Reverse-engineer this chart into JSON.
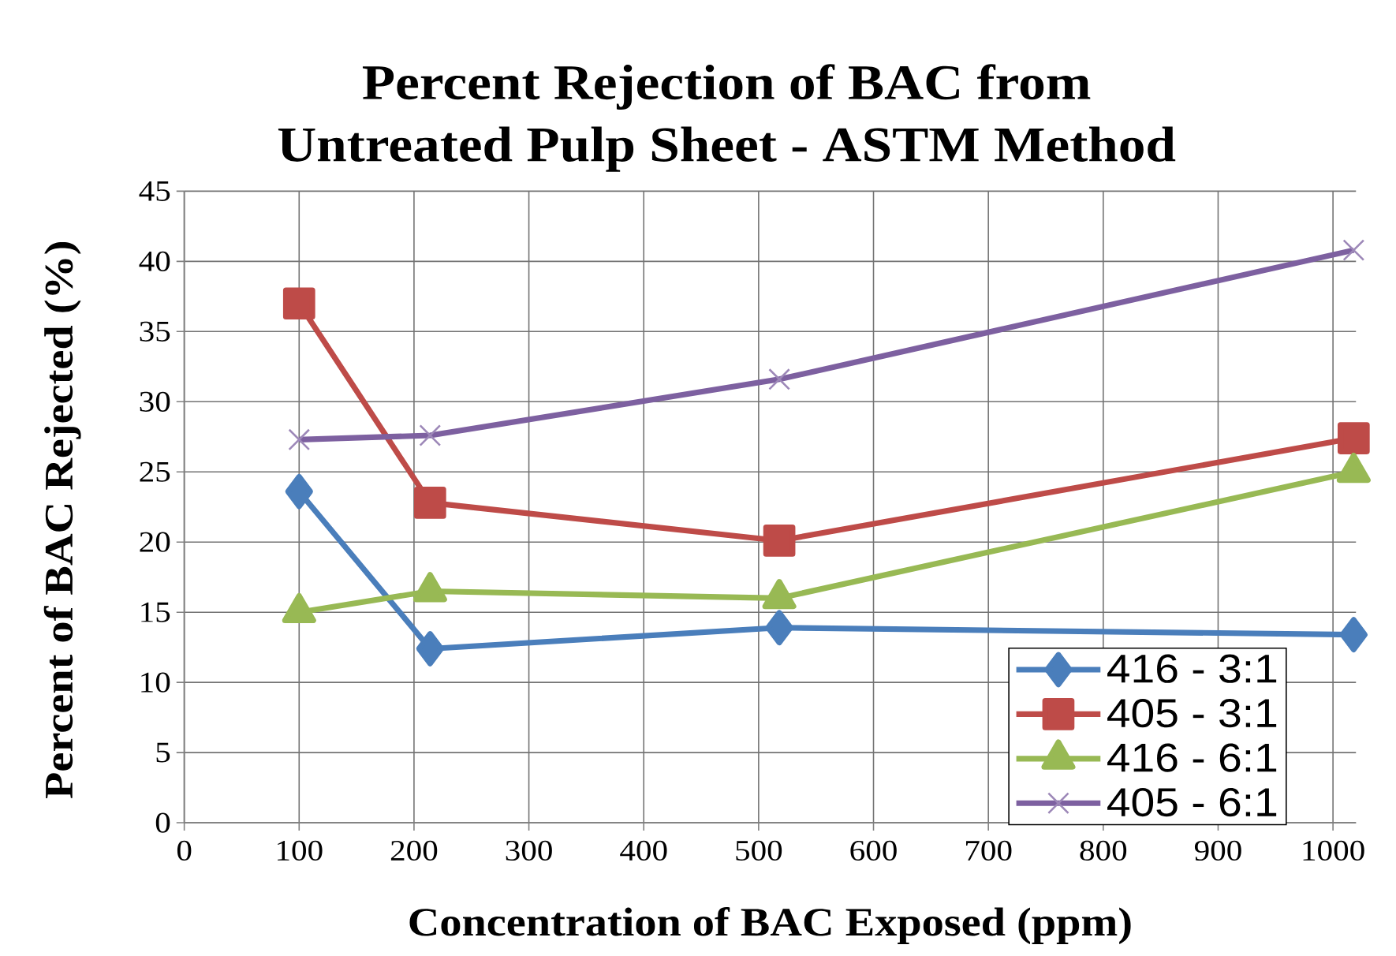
{
  "chart_data": {
    "type": "line",
    "title": "Percent Rejection of BAC from Untreated Pulp Sheet - ASTM Method",
    "xlabel": "Concentration of BAC Exposed (ppm)",
    "ylabel": "Percent of BAC Rejected (%)",
    "x": [
      100,
      214,
      518,
      1018
    ],
    "series": [
      {
        "name": "416 - 3:1",
        "color": "#4a7ebb",
        "marker": "diamond",
        "values": [
          23.6,
          12.4,
          13.9,
          13.4
        ]
      },
      {
        "name": "405 - 3:1",
        "color": "#be4b48",
        "marker": "square",
        "values": [
          37.0,
          22.8,
          20.1,
          27.4
        ]
      },
      {
        "name": "416 - 6:1",
        "color": "#98b954",
        "marker": "triangle",
        "values": [
          15.0,
          16.5,
          16.0,
          25.0
        ]
      },
      {
        "name": "405 - 6:1",
        "color": "#7d60a0",
        "marker": "cross",
        "values": [
          27.3,
          27.6,
          31.6,
          40.8
        ]
      }
    ],
    "xlim": [
      0,
      1020
    ],
    "ylim": [
      0,
      45
    ],
    "xticks": [
      0,
      100,
      200,
      300,
      400,
      500,
      600,
      700,
      800,
      900,
      1000
    ],
    "yticks": [
      0,
      5,
      10,
      15,
      20,
      25,
      30,
      35,
      40,
      45
    ],
    "grid": true,
    "legend": "bottom right",
    "line_style": "solid"
  }
}
